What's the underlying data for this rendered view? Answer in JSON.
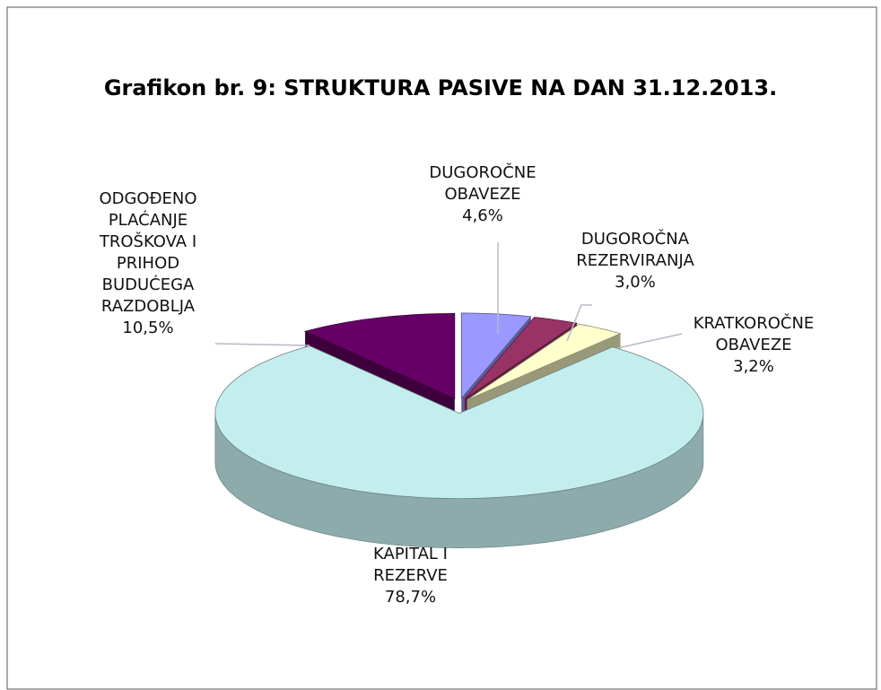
{
  "chart_data": {
    "type": "pie3d",
    "title": "Grafikon br. 9: STRUKTURA PASIVE NA DAN 31.12.2013.",
    "categories": [
      "DUGOROČNE OBAVEZE",
      "DUGOROČNA REZERVIRANJA",
      "KRATKOROČNE OBAVEZE",
      "KAPITAL I REZERVE",
      "ODGOĐENO PLAĆANJE TROŠKOVA I PRIHOD BUDUĆEGA RAZDOBLJA"
    ],
    "values": [
      4.6,
      3.0,
      3.2,
      78.7,
      10.5
    ],
    "value_labels": [
      "4,6%",
      "3,0%",
      "3,2%",
      "78,7%",
      "10,5%"
    ],
    "colors": [
      "#9999ff",
      "#993366",
      "#ffffcc",
      "#c4eeee",
      "#660066"
    ]
  }
}
